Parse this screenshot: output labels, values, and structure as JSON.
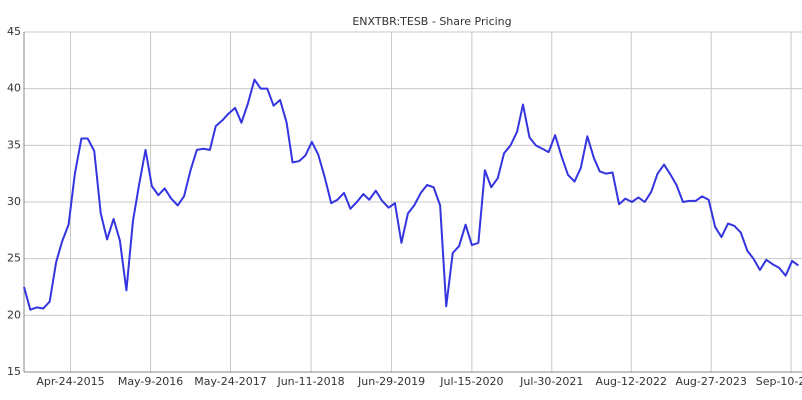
{
  "chart_data": {
    "type": "line",
    "title": "ENXTBR:TESB - Share Pricing",
    "x": [
      "2014-09-15",
      "2014-10-15",
      "2014-11-15",
      "2014-12-15",
      "2015-01-15",
      "2015-02-15",
      "2015-03-15",
      "2015-04-15",
      "2015-05-15",
      "2015-06-15",
      "2015-07-15",
      "2015-08-15",
      "2015-09-15",
      "2015-10-15",
      "2015-11-15",
      "2015-12-15",
      "2016-01-15",
      "2016-02-15",
      "2016-03-15",
      "2016-04-15",
      "2016-05-15",
      "2016-06-15",
      "2016-07-15",
      "2016-08-15",
      "2016-09-15",
      "2016-10-15",
      "2016-11-15",
      "2016-12-15",
      "2017-01-15",
      "2017-02-15",
      "2017-03-15",
      "2017-04-15",
      "2017-05-15",
      "2017-06-15",
      "2017-07-15",
      "2017-08-15",
      "2017-09-15",
      "2017-10-15",
      "2017-11-15",
      "2017-12-15",
      "2018-01-15",
      "2018-02-15",
      "2018-03-15",
      "2018-04-15",
      "2018-05-15",
      "2018-06-15",
      "2018-07-15",
      "2018-08-15",
      "2018-09-15",
      "2018-10-15",
      "2018-11-15",
      "2018-12-15",
      "2019-01-15",
      "2019-02-15",
      "2019-03-15",
      "2019-04-15",
      "2019-05-15",
      "2019-06-15",
      "2019-07-15",
      "2019-08-15",
      "2019-09-15",
      "2019-10-15",
      "2019-11-15",
      "2019-12-15",
      "2020-01-15",
      "2020-02-15",
      "2020-03-15",
      "2020-04-15",
      "2020-05-15",
      "2020-06-15",
      "2020-07-15",
      "2020-08-15",
      "2020-09-15",
      "2020-10-15",
      "2020-11-15",
      "2020-12-15",
      "2021-01-15",
      "2021-02-15",
      "2021-03-15",
      "2021-04-15",
      "2021-05-15",
      "2021-06-15",
      "2021-07-15",
      "2021-08-15",
      "2021-09-15",
      "2021-10-15",
      "2021-11-15",
      "2021-12-15",
      "2022-01-15",
      "2022-02-15",
      "2022-03-15",
      "2022-04-15",
      "2022-05-15",
      "2022-06-15",
      "2022-07-15",
      "2022-08-15",
      "2022-09-15",
      "2022-10-15",
      "2022-11-15",
      "2022-12-15",
      "2023-01-15",
      "2023-02-15",
      "2023-03-15",
      "2023-04-15",
      "2023-05-15",
      "2023-06-15",
      "2023-07-15",
      "2023-08-15",
      "2023-09-15",
      "2023-10-15",
      "2023-11-15",
      "2023-12-15",
      "2024-01-15",
      "2024-02-15",
      "2024-03-15",
      "2024-04-15",
      "2024-05-15",
      "2024-06-15",
      "2024-07-15",
      "2024-08-15",
      "2024-09-15",
      "2024-10-15"
    ],
    "values": [
      22.5,
      20.5,
      20.7,
      20.6,
      21.2,
      24.7,
      26.5,
      28.0,
      32.5,
      35.6,
      35.6,
      34.5,
      29.0,
      26.7,
      28.5,
      26.6,
      22.2,
      28.3,
      31.5,
      34.6,
      31.4,
      30.6,
      31.2,
      30.3,
      29.7,
      30.5,
      32.8,
      34.6,
      34.7,
      34.6,
      36.7,
      37.2,
      37.8,
      38.3,
      37.0,
      38.7,
      40.8,
      40.0,
      40.0,
      38.5,
      39.0,
      37.0,
      33.5,
      33.6,
      34.1,
      35.3,
      34.2,
      32.2,
      29.9,
      30.2,
      30.8,
      29.4,
      30.0,
      30.7,
      30.2,
      31.0,
      30.1,
      29.5,
      29.9,
      26.4,
      29.0,
      29.7,
      30.8,
      31.5,
      31.3,
      29.7,
      20.8,
      25.5,
      26.1,
      28.0,
      26.2,
      26.4,
      32.8,
      31.3,
      32.1,
      34.3,
      35.0,
      36.2,
      38.6,
      35.7,
      35.0,
      34.7,
      34.4,
      35.9,
      34.0,
      32.4,
      31.8,
      33.0,
      35.8,
      33.9,
      32.7,
      32.5,
      32.6,
      29.8,
      30.3,
      30.0,
      30.4,
      30.0,
      30.9,
      32.5,
      33.3,
      32.4,
      31.5,
      30.0,
      30.1,
      30.1,
      30.5,
      30.2,
      27.8,
      26.9,
      28.1,
      27.9,
      27.3,
      25.7,
      25.0,
      24.0,
      24.9,
      24.5,
      24.2,
      23.5,
      24.8,
      24.4
    ],
    "color": "#3535e0",
    "xlim": [
      "2014-09-15",
      "2024-11-01"
    ],
    "xticks": [
      {
        "value": "2015-04-24",
        "label": "Apr-24-2015"
      },
      {
        "value": "2016-05-09",
        "label": "May-9-2016"
      },
      {
        "value": "2017-05-24",
        "label": "May-24-2017"
      },
      {
        "value": "2018-06-11",
        "label": "Jun-11-2018"
      },
      {
        "value": "2019-06-29",
        "label": "Jun-29-2019"
      },
      {
        "value": "2020-07-15",
        "label": "Jul-15-2020"
      },
      {
        "value": "2021-07-30",
        "label": "Jul-30-2021"
      },
      {
        "value": "2022-08-12",
        "label": "Aug-12-2022"
      },
      {
        "value": "2023-08-27",
        "label": "Aug-27-2023"
      },
      {
        "value": "2024-09-10",
        "label": "Sep-10-2024"
      }
    ],
    "ylim": [
      15,
      45
    ],
    "yticks": [
      15,
      20,
      25,
      30,
      35,
      40,
      45
    ],
    "grid": true
  }
}
